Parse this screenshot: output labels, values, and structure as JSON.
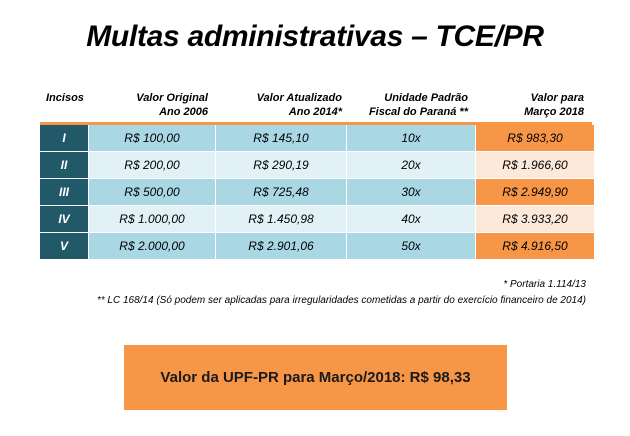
{
  "title": "Multas administrativas – TCE/PR",
  "headers": {
    "incisos": "Incisos",
    "original_1": "Valor Original",
    "original_2": "Ano 2006",
    "atualizado_1": "Valor Atualizado",
    "atualizado_2": "Ano 2014*",
    "upf_1": "Unidade Padrão",
    "upf_2": "Fiscal do Paraná **",
    "marco_1": "Valor para",
    "marco_2": "Março 2018"
  },
  "rows": [
    {
      "inciso": "I",
      "original": "R$ 100,00",
      "atualizado": "R$ 145,10",
      "multiplo": "10x",
      "marco": "R$ 983,30"
    },
    {
      "inciso": "II",
      "original": "R$ 200,00",
      "atualizado": "R$ 290,19",
      "multiplo": "20x",
      "marco": "R$ 1.966,60"
    },
    {
      "inciso": "III",
      "original": "R$ 500,00",
      "atualizado": "R$ 725,48",
      "multiplo": "30x",
      "marco": "R$ 2.949,90"
    },
    {
      "inciso": "IV",
      "original": "R$ 1.000,00",
      "atualizado": "R$ 1.450,98",
      "multiplo": "40x",
      "marco": "R$ 3.933,20"
    },
    {
      "inciso": "V",
      "original": "R$ 2.000,00",
      "atualizado": "R$ 2.901,06",
      "multiplo": "50x",
      "marco": "R$ 4.916,50"
    }
  ],
  "notes": {
    "portaria": "* Portaria 1.114/13",
    "lc": "** LC 168/14 (Só podem ser aplicadas para irregularidades cometidas a partir do exercício financeiro de 2014)"
  },
  "banner": "Valor da UPF-PR para Março/2018: R$ 98,33",
  "colors": {
    "accent_orange": "#f79646",
    "light_orange": "#fde9d9",
    "teal_dark": "#215968",
    "blue_mid": "#a9d8e4",
    "blue_light": "#e1f1f6"
  }
}
